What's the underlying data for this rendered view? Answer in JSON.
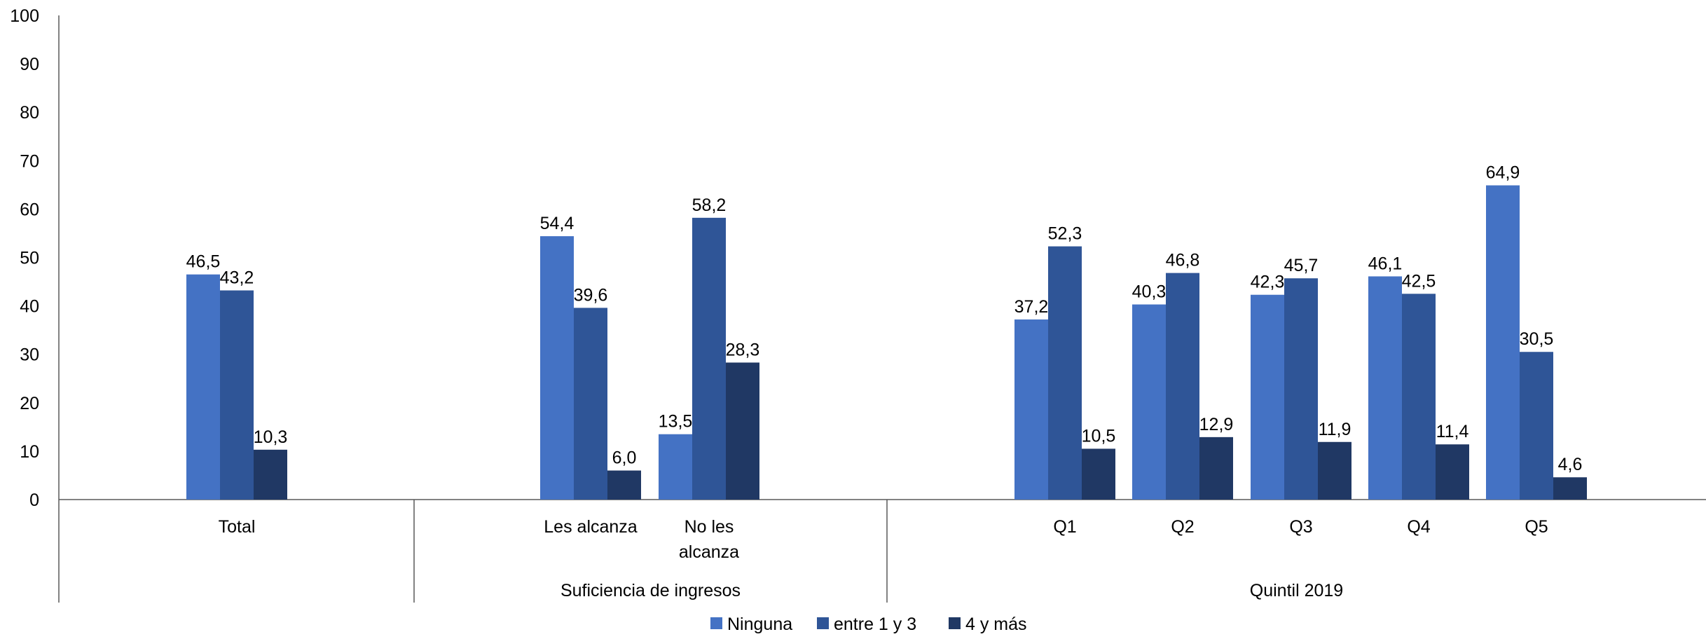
{
  "chart_data": {
    "type": "bar",
    "title": "",
    "xlabel": "",
    "ylabel": "",
    "ylim": [
      0,
      100
    ],
    "yticks": [
      "0",
      "10",
      "20",
      "30",
      "40",
      "50",
      "60",
      "70",
      "80",
      "90",
      "100"
    ],
    "legend_position": "bottom",
    "grid": false,
    "colors": {
      "Ninguna": "#4472C4",
      "entre 1 y 3": "#2F5597",
      "4 y más": "#203864"
    },
    "groups": [
      {
        "label": "",
        "categories": [
          "Total"
        ]
      },
      {
        "label": "Suficiencia de ingresos",
        "categories": [
          "Les alcanza",
          "No les alcanza"
        ]
      },
      {
        "label": "Quintil 2019",
        "categories": [
          "Q1",
          "Q2",
          "Q3",
          "Q4",
          "Q5"
        ]
      }
    ],
    "categories": [
      "Total",
      "Les alcanza",
      "No les alcanza",
      "Q1",
      "Q2",
      "Q3",
      "Q4",
      "Q5"
    ],
    "series": [
      {
        "name": "Ninguna",
        "values": [
          46.5,
          54.4,
          13.5,
          37.2,
          40.3,
          42.3,
          46.1,
          64.9
        ],
        "labels": [
          "46,5",
          "54,4",
          "13,5",
          "37,2",
          "40,3",
          "42,3",
          "46,1",
          "64,9"
        ]
      },
      {
        "name": "entre 1 y 3",
        "values": [
          43.2,
          39.6,
          58.2,
          52.3,
          46.8,
          45.7,
          42.5,
          30.5
        ],
        "labels": [
          "43,2",
          "39,6",
          "58,2",
          "52,3",
          "46,8",
          "45,7",
          "42,5",
          "30,5"
        ]
      },
      {
        "name": "4 y más",
        "values": [
          10.3,
          6.0,
          28.3,
          10.5,
          12.9,
          11.9,
          11.4,
          4.6
        ],
        "labels": [
          "10,3",
          "6,0",
          "28,3",
          "10,5",
          "12,9",
          "11,9",
          "11,4",
          "4,6"
        ]
      }
    ]
  }
}
